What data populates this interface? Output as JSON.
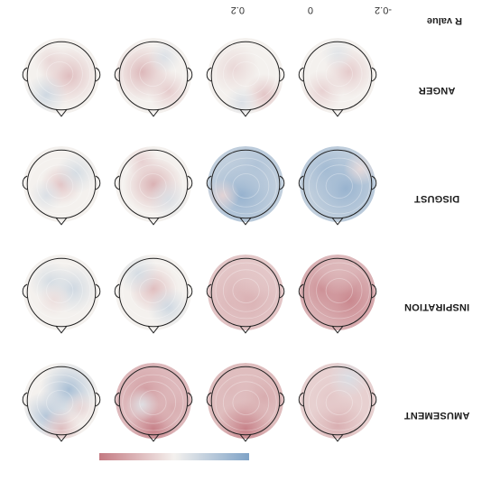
{
  "rows": [
    {
      "label": "AMUSEMENT",
      "maps": [
        {
          "base": "pos",
          "strength": 0.1,
          "blobs": [
            [
              0.0,
              -0.65,
              0.35,
              0.1
            ],
            [
              0.2,
              0.1,
              0.25,
              0.06
            ],
            [
              -0.3,
              0.6,
              0.25,
              -0.04
            ]
          ]
        },
        {
          "base": "pos",
          "strength": 0.16,
          "blobs": [
            [
              0.0,
              -0.75,
              0.35,
              0.18
            ],
            [
              -0.5,
              0.1,
              0.3,
              0.1
            ],
            [
              0.4,
              0.3,
              0.3,
              0.08
            ]
          ]
        },
        {
          "base": "pos",
          "strength": 0.17,
          "blobs": [
            [
              0.0,
              -0.75,
              0.3,
              0.18
            ],
            [
              0.2,
              0.3,
              0.35,
              0.12
            ],
            [
              -0.5,
              -0.2,
              0.25,
              0.1
            ],
            [
              0.3,
              -0.1,
              0.2,
              -0.03
            ]
          ]
        },
        {
          "base": "mix",
          "strength": 0.14,
          "blobs": [
            [
              -0.2,
              0.3,
              0.35,
              -0.12
            ],
            [
              0.4,
              -0.4,
              0.3,
              -0.1
            ],
            [
              0.0,
              -0.75,
              0.25,
              0.08
            ],
            [
              -0.5,
              -0.2,
              0.2,
              0.04
            ]
          ]
        }
      ]
    },
    {
      "label": "INSPIRATION",
      "maps": [
        {
          "base": "pos",
          "strength": 0.18,
          "blobs": [
            [
              -0.3,
              -0.2,
              0.45,
              0.16
            ],
            [
              0.4,
              0.1,
              0.4,
              0.14
            ],
            [
              0.0,
              0.6,
              0.3,
              0.08
            ]
          ]
        },
        {
          "base": "pos",
          "strength": 0.13,
          "blobs": [
            [
              0.0,
              -0.2,
              0.45,
              0.1
            ],
            [
              -0.3,
              0.5,
              0.3,
              0.06
            ],
            [
              0.4,
              -0.3,
              0.3,
              0.08
            ]
          ]
        },
        {
          "base": "mix",
          "strength": 0.1,
          "blobs": [
            [
              0.0,
              0.1,
              0.3,
              0.08
            ],
            [
              -0.4,
              -0.4,
              0.25,
              -0.06
            ],
            [
              0.4,
              0.5,
              0.25,
              -0.05
            ]
          ]
        },
        {
          "base": "mix",
          "strength": 0.08,
          "blobs": [
            [
              -0.3,
              0.1,
              0.3,
              -0.06
            ],
            [
              0.3,
              0.3,
              0.25,
              -0.05
            ],
            [
              0.2,
              -0.2,
              0.2,
              0.03
            ]
          ]
        }
      ]
    },
    {
      "label": "DISGUST",
      "maps": [
        {
          "base": "neg",
          "strength": 0.16,
          "blobs": [
            [
              -0.2,
              -0.1,
              0.45,
              -0.14
            ],
            [
              0.3,
              0.4,
              0.35,
              -0.12
            ],
            [
              -0.6,
              0.4,
              0.2,
              0.03
            ]
          ]
        },
        {
          "base": "neg",
          "strength": 0.16,
          "blobs": [
            [
              0.1,
              -0.3,
              0.45,
              -0.14
            ],
            [
              -0.3,
              0.5,
              0.35,
              -0.1
            ],
            [
              0.6,
              -0.3,
              0.2,
              0.04
            ]
          ]
        },
        {
          "base": "mix",
          "strength": 0.1,
          "blobs": [
            [
              0.0,
              0.0,
              0.35,
              0.1
            ],
            [
              -0.4,
              -0.4,
              0.25,
              -0.04
            ],
            [
              0.3,
              0.6,
              0.2,
              0.05
            ]
          ]
        },
        {
          "base": "mix",
          "strength": 0.08,
          "blobs": [
            [
              0.0,
              0.0,
              0.25,
              0.07
            ],
            [
              -0.4,
              0.3,
              0.25,
              -0.05
            ],
            [
              0.4,
              -0.3,
              0.2,
              -0.04
            ]
          ]
        }
      ]
    },
    {
      "label": "ANGER",
      "maps": [
        {
          "base": "mix",
          "strength": 0.08,
          "blobs": [
            [
              -0.3,
              0.1,
              0.3,
              0.06
            ],
            [
              0.4,
              -0.4,
              0.25,
              0.05
            ],
            [
              0.0,
              0.6,
              0.2,
              -0.03
            ]
          ]
        },
        {
          "base": "mix",
          "strength": 0.08,
          "blobs": [
            [
              -0.5,
              -0.5,
              0.25,
              0.07
            ],
            [
              0.3,
              0.2,
              0.3,
              0.04
            ],
            [
              0.1,
              -0.7,
              0.2,
              -0.04
            ]
          ]
        },
        {
          "base": "mix",
          "strength": 0.1,
          "blobs": [
            [
              0.3,
              0.1,
              0.35,
              0.09
            ],
            [
              -0.4,
              -0.4,
              0.25,
              0.06
            ],
            [
              -0.3,
              0.5,
              0.2,
              -0.04
            ]
          ]
        },
        {
          "base": "mix",
          "strength": 0.09,
          "blobs": [
            [
              -0.2,
              0.0,
              0.35,
              0.08
            ],
            [
              0.4,
              -0.5,
              0.25,
              -0.06
            ],
            [
              0.3,
              0.4,
              0.2,
              0.04
            ]
          ]
        }
      ]
    }
  ],
  "colorbar": {
    "title": "R value",
    "ticks": [
      {
        "value": -0.2,
        "label": "-0.2"
      },
      {
        "value": 0,
        "label": "0"
      },
      {
        "value": 0.2,
        "label": "0.2"
      }
    ],
    "range": [
      -0.2,
      0.2
    ],
    "neg_color": "#7fa3c7",
    "mid_color": "#f4f1ee",
    "pos_color": "#c47a82"
  },
  "head_outline_color": "#222222"
}
